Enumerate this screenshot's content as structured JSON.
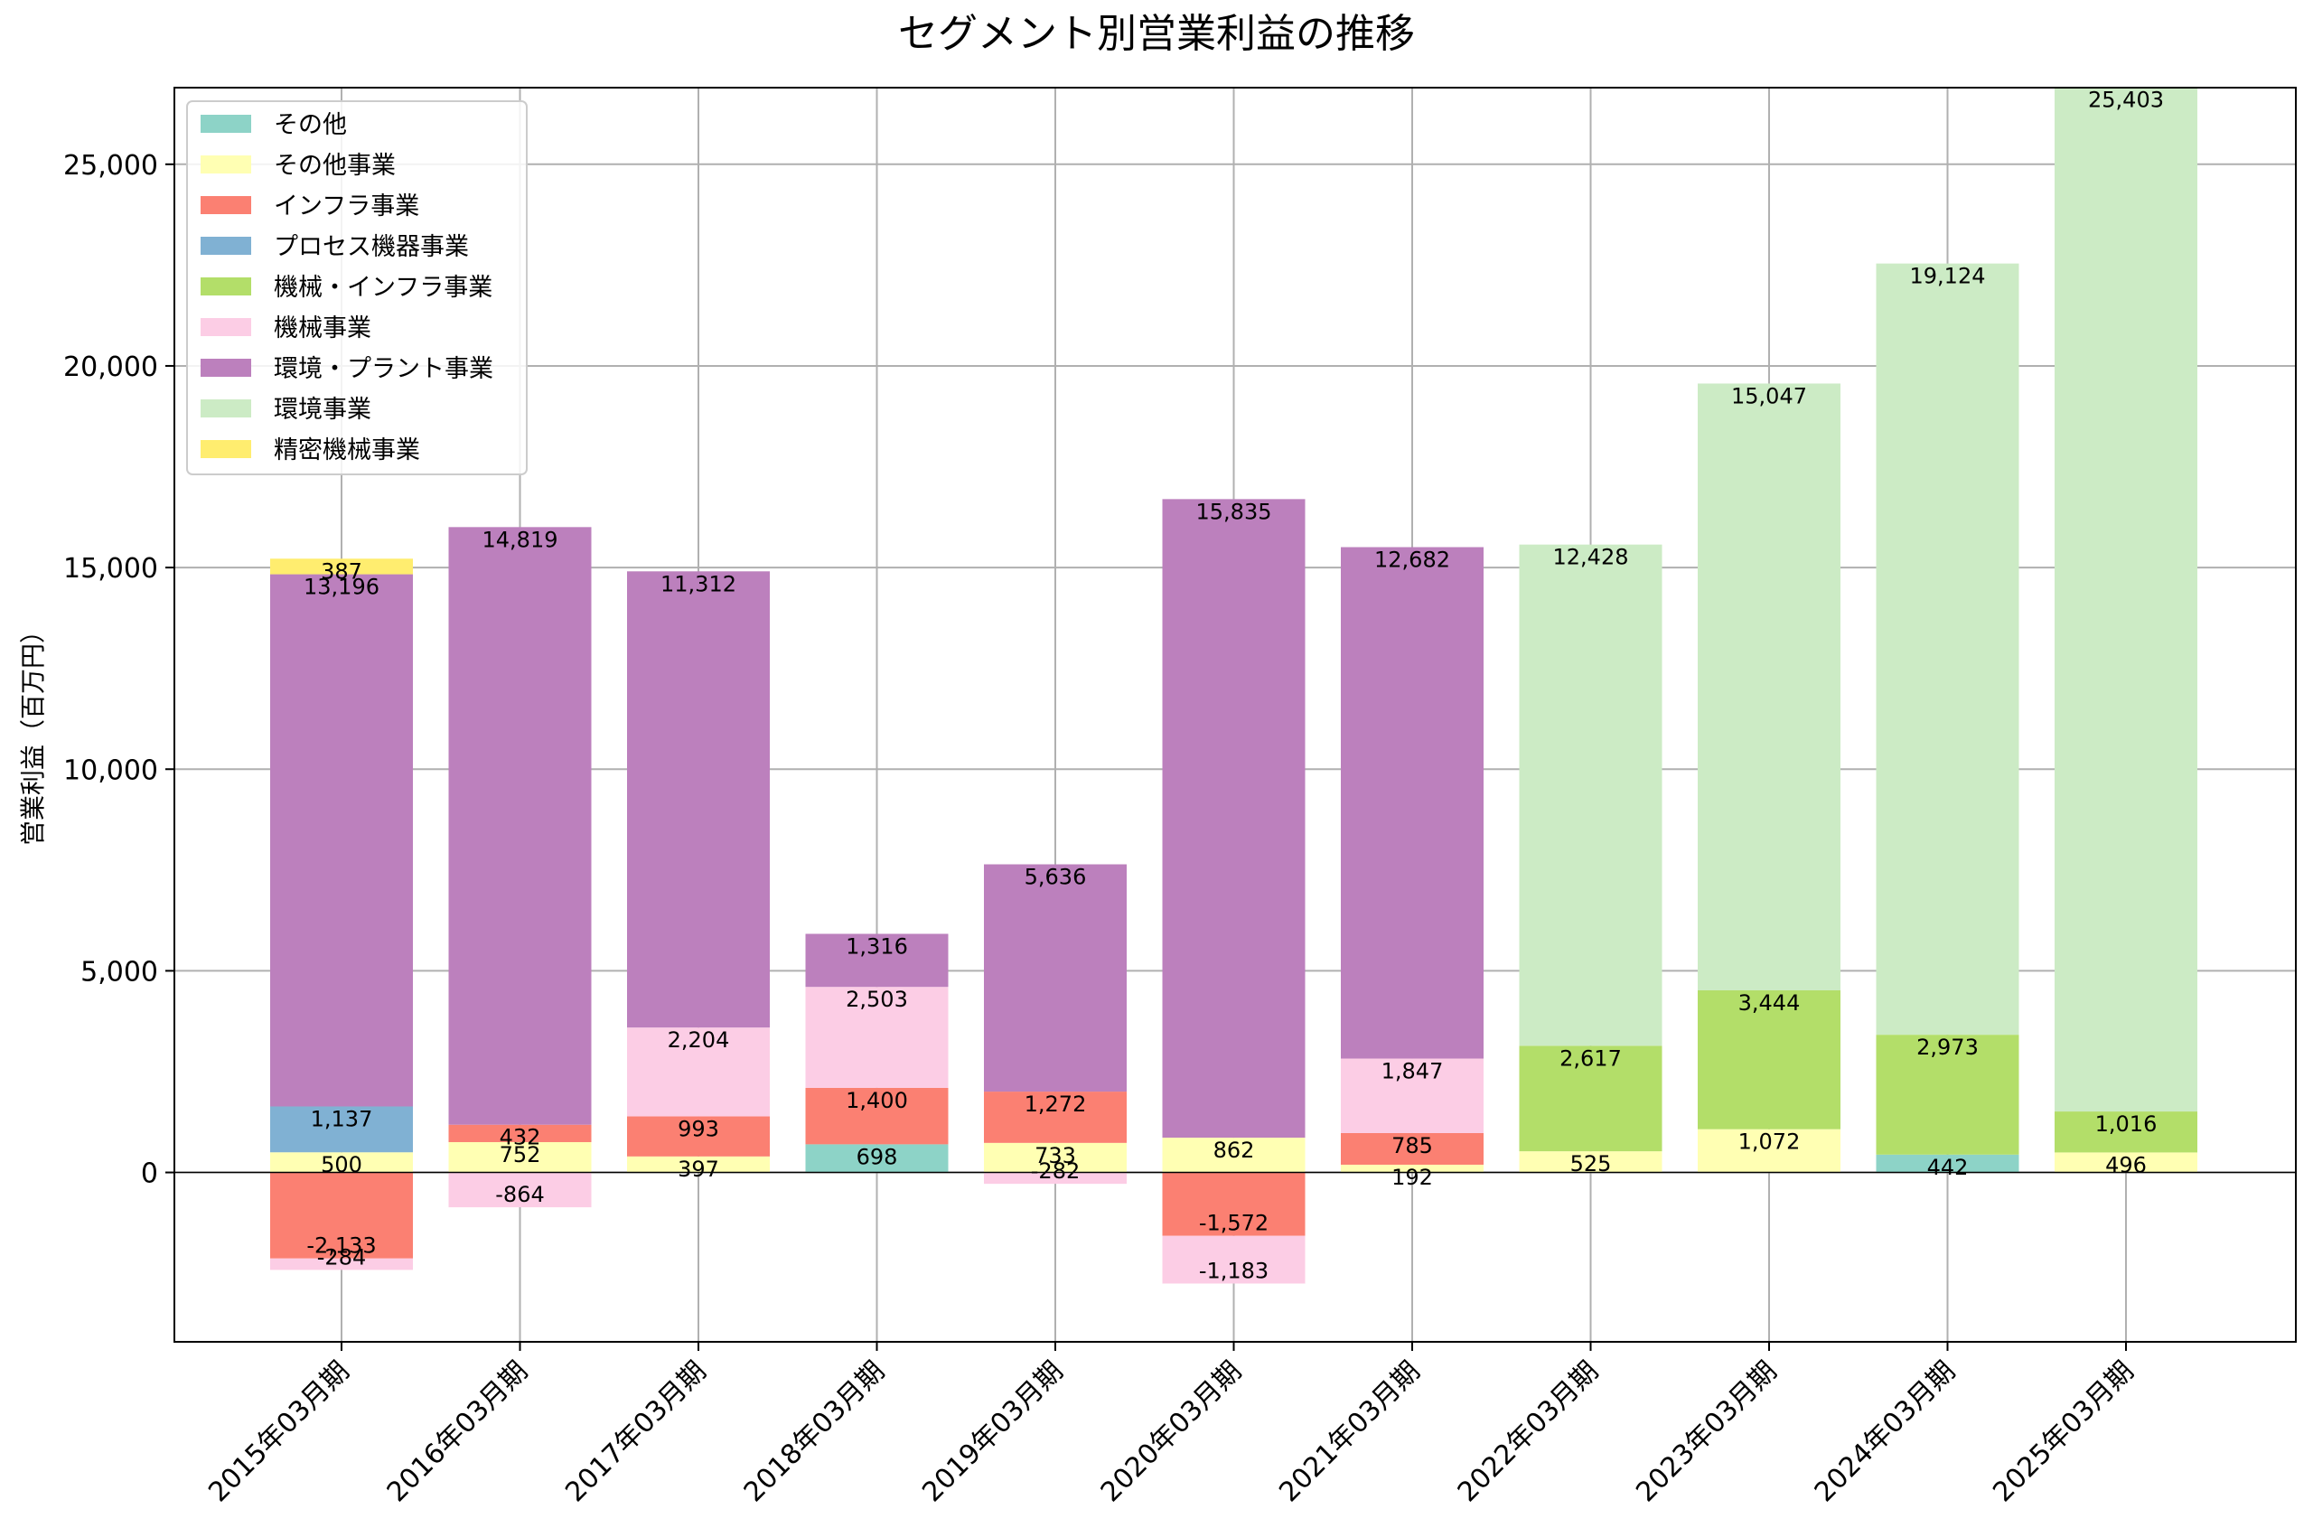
{
  "chart_data": {
    "type": "bar",
    "stacked": true,
    "title": "セグメント別営業利益の推移",
    "xlabel": "",
    "ylabel": "営業利益（百万円）",
    "ylim": [
      -4200,
      26900
    ],
    "yticks": [
      0,
      5000,
      10000,
      15000,
      20000,
      25000
    ],
    "ytick_labels": [
      "0",
      "5,000",
      "10,000",
      "15,000",
      "20,000",
      "25,000"
    ],
    "grid": true,
    "legend_position": "top-left",
    "categories": [
      "2015年03月期",
      "2016年03月期",
      "2017年03月期",
      "2018年03月期",
      "2019年03月期",
      "2020年03月期",
      "2021年03月期",
      "2022年03月期",
      "2023年03月期",
      "2024年03月期",
      "2025年03月期"
    ],
    "series": [
      {
        "name": "その他",
        "color": "#8dd3c7",
        "values": [
          null,
          null,
          null,
          698,
          null,
          null,
          null,
          null,
          null,
          442,
          null
        ]
      },
      {
        "name": "その他事業",
        "color": "#ffffb3",
        "values": [
          500,
          752,
          397,
          null,
          733,
          862,
          192,
          525,
          1072,
          null,
          496
        ]
      },
      {
        "name": "インフラ事業",
        "color": "#fb8072",
        "values": [
          -2133,
          432,
          993,
          1400,
          1272,
          -1572,
          785,
          null,
          null,
          null,
          null
        ]
      },
      {
        "name": "プロセス機器事業",
        "color": "#80b1d3",
        "values": [
          1137,
          null,
          null,
          null,
          null,
          null,
          null,
          null,
          null,
          null,
          null
        ]
      },
      {
        "name": "機械・インフラ事業",
        "color": "#b3de69",
        "values": [
          null,
          null,
          null,
          null,
          null,
          null,
          null,
          2617,
          3444,
          2973,
          1016
        ]
      },
      {
        "name": "機械事業",
        "color": "#fccde5",
        "values": [
          -284,
          -864,
          2204,
          2503,
          -282,
          -1183,
          1847,
          null,
          null,
          null,
          null
        ]
      },
      {
        "name": "環境・プラント事業",
        "color": "#bc80bd",
        "values": [
          13196,
          14819,
          11312,
          1316,
          5636,
          15835,
          12682,
          null,
          null,
          null,
          null
        ]
      },
      {
        "name": "環境事業",
        "color": "#ccebc5",
        "values": [
          null,
          null,
          null,
          null,
          null,
          null,
          null,
          12428,
          15047,
          19124,
          25403
        ]
      },
      {
        "name": "精密機械事業",
        "color": "#ffed6f",
        "values": [
          387,
          null,
          null,
          null,
          null,
          null,
          null,
          null,
          null,
          null,
          null
        ]
      }
    ]
  }
}
